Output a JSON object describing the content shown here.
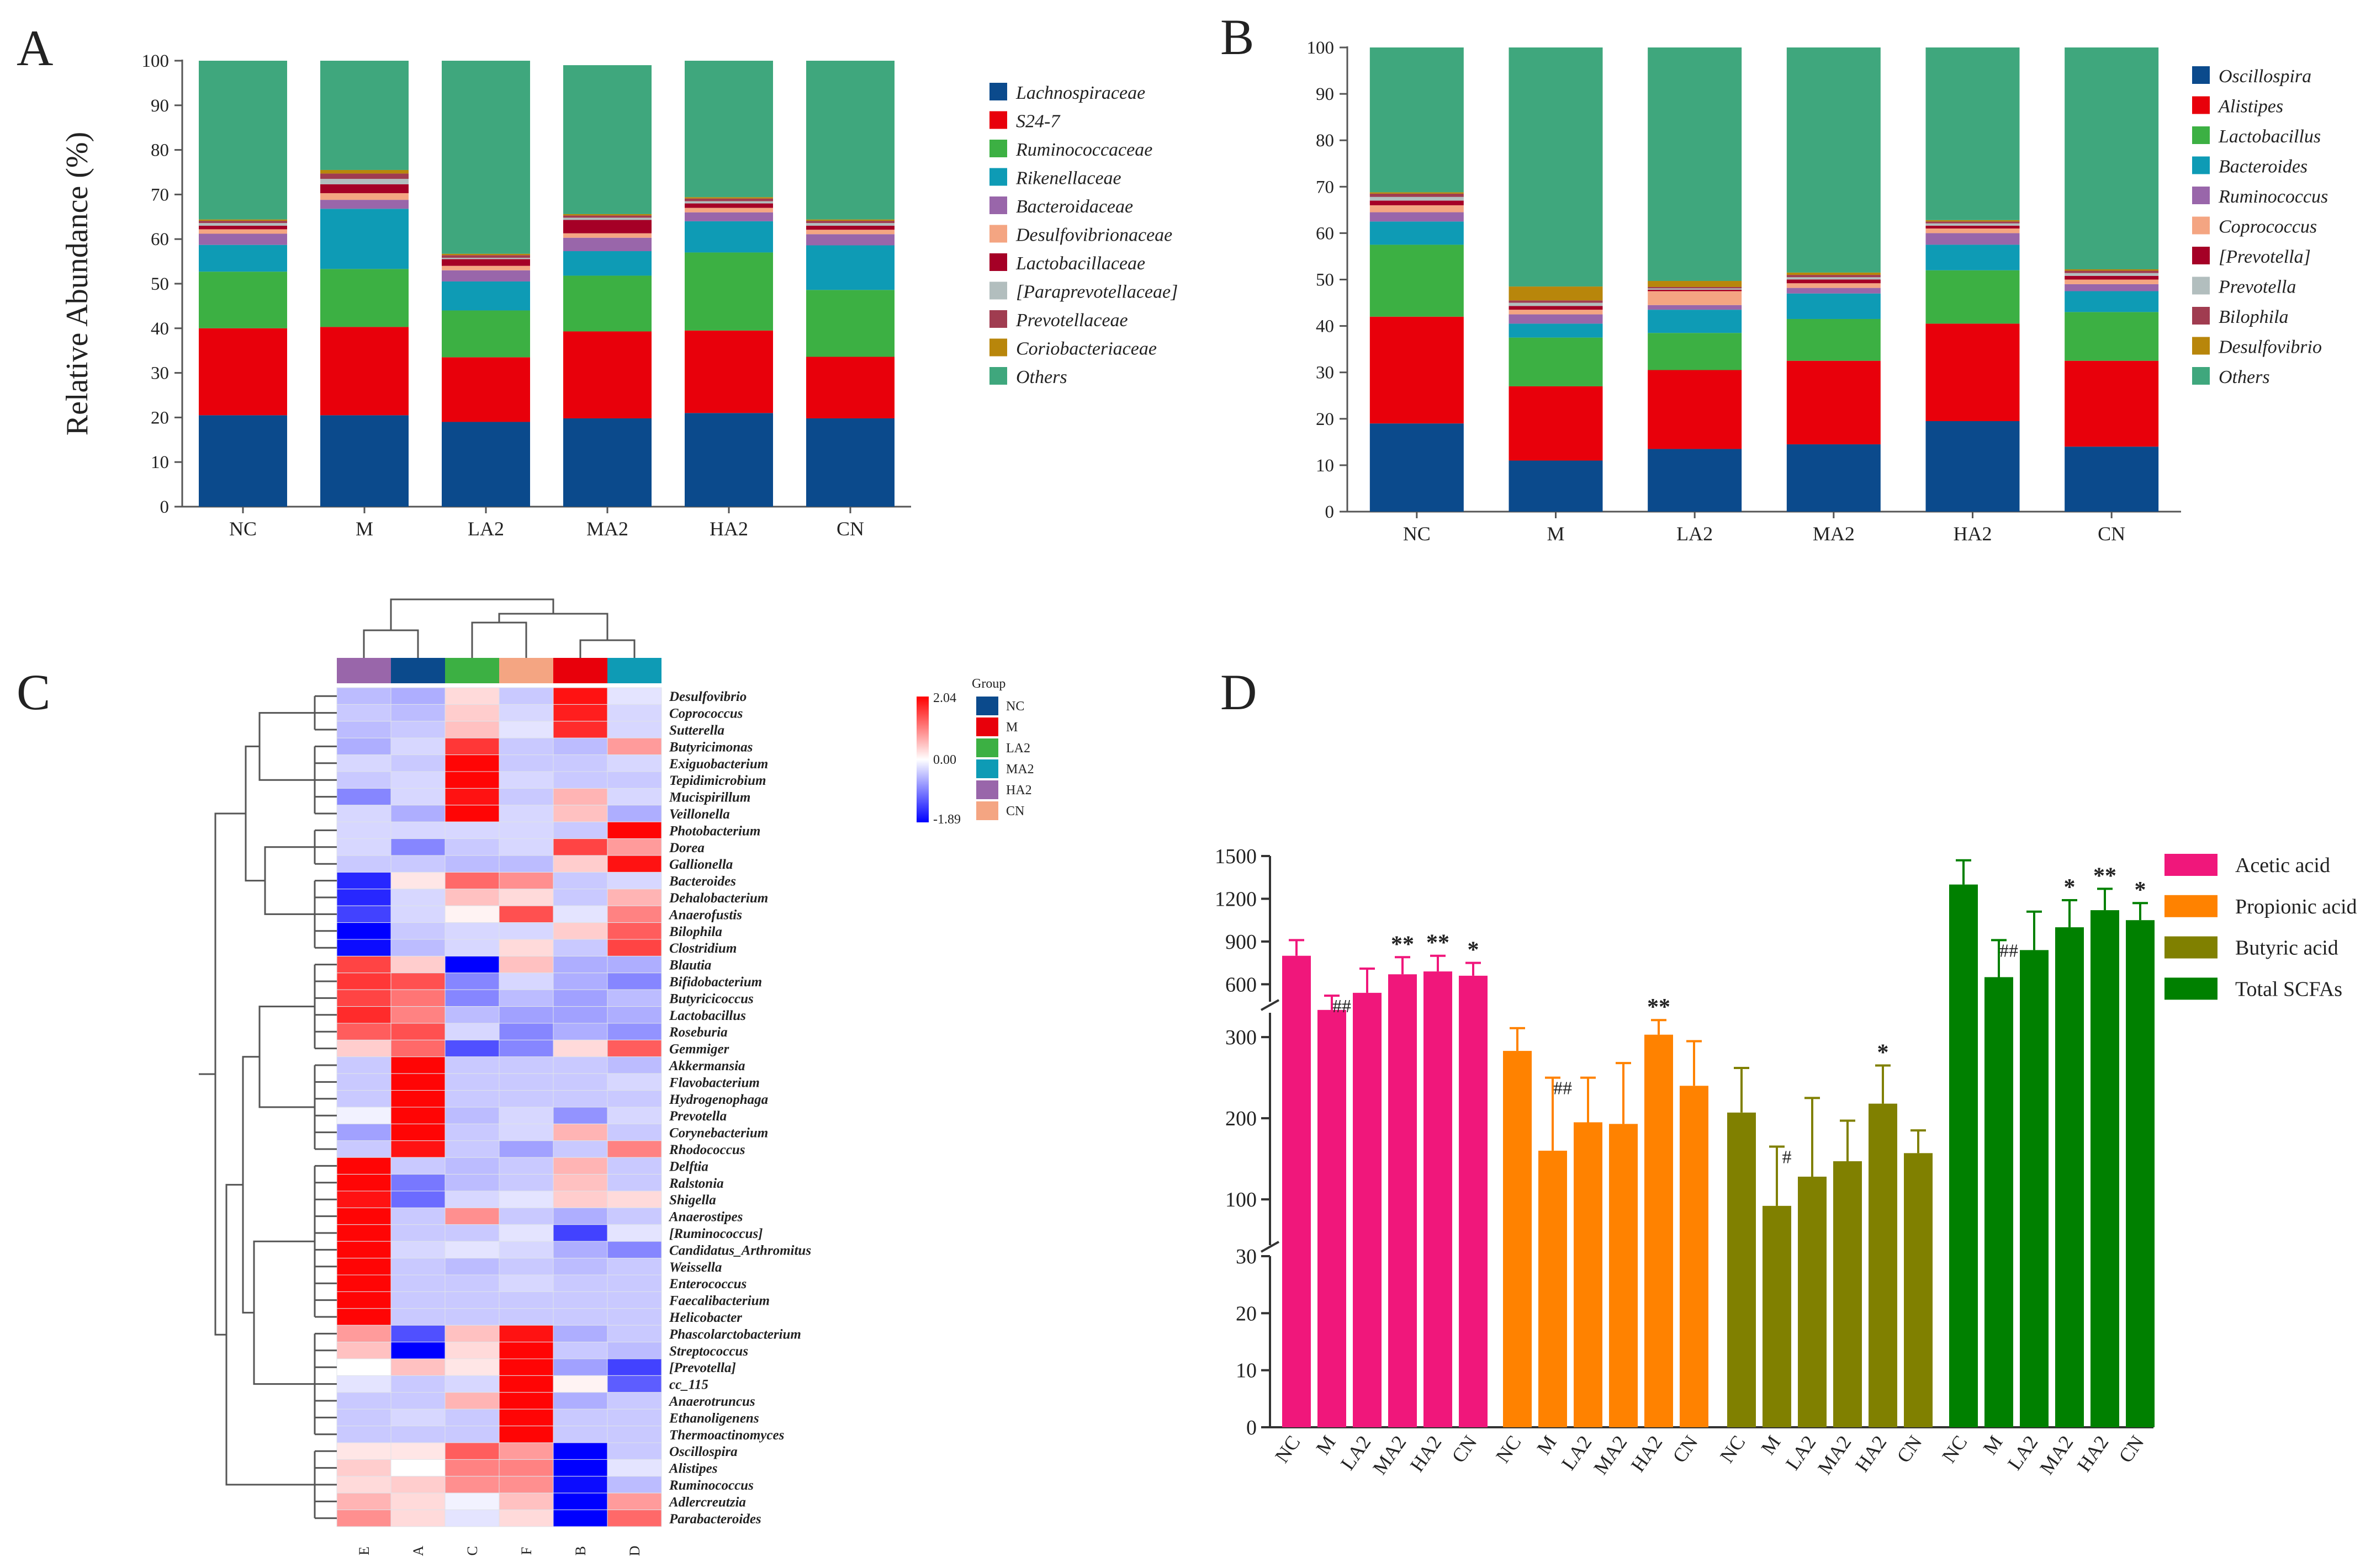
{
  "panel_labels": [
    "A",
    "B",
    "C",
    "D"
  ],
  "chart_data": [
    {
      "id": "A",
      "type": "bar",
      "stacked": true,
      "title": "",
      "xlabel": "",
      "ylabel": "Relative Abundance (%)",
      "ylim": [
        0,
        100
      ],
      "yticks": [
        0,
        10,
        20,
        30,
        40,
        50,
        60,
        70,
        80,
        90,
        100
      ],
      "categories": [
        "NC",
        "M",
        "LA2",
        "MA2",
        "HA2",
        "CN"
      ],
      "series": [
        {
          "name": "Lachnospiraceae",
          "color": "#0b4a8c",
          "values": [
            20.5,
            20.5,
            19,
            19.8,
            21,
            19.8
          ]
        },
        {
          "name": "S24-7",
          "color": "#e8000b",
          "values": [
            19.5,
            19.8,
            14.5,
            19.5,
            18.5,
            13.8
          ]
        },
        {
          "name": "Ruminococcaceae",
          "color": "#3cb043",
          "values": [
            12.7,
            13,
            10.5,
            12.5,
            17.5,
            15
          ]
        },
        {
          "name": "Rikenellaceae",
          "color": "#0e9bb5",
          "values": [
            6,
            13.5,
            6.5,
            5.5,
            7,
            10
          ]
        },
        {
          "name": "Bacteroidaceae",
          "color": "#9966aa",
          "values": [
            2.5,
            2,
            2.5,
            3,
            2,
            2.5
          ]
        },
        {
          "name": "Desulfovibrionaceae",
          "color": "#f4a582",
          "values": [
            1,
            1.5,
            1,
            1,
            1,
            1
          ]
        },
        {
          "name": "Lactobacillaceae",
          "color": "#a50026",
          "values": [
            0.8,
            2,
            1.5,
            3,
            1,
            0.9
          ]
        },
        {
          "name": "[Paraprevotellaceae]",
          "color": "#b2bebe",
          "values": [
            0.6,
            1.2,
            0.3,
            0.5,
            0.5,
            0.6
          ]
        },
        {
          "name": "Prevotellaceae",
          "color": "#a03c50",
          "values": [
            0.5,
            1.2,
            0.6,
            0.5,
            0.6,
            0.5
          ]
        },
        {
          "name": "Coriobacteriaceae",
          "color": "#b8860b",
          "values": [
            0.3,
            0.8,
            0.3,
            0.3,
            0.3,
            0.3
          ]
        },
        {
          "name": "Others",
          "color": "#3fa77d",
          "values": [
            35.6,
            24.5,
            43.3,
            33.4,
            30.6,
            35.6
          ]
        }
      ]
    },
    {
      "id": "B",
      "type": "bar",
      "stacked": true,
      "title": "",
      "xlabel": "",
      "ylabel": "",
      "ylim": [
        0,
        100
      ],
      "yticks": [
        0,
        10,
        20,
        30,
        40,
        50,
        60,
        70,
        80,
        90,
        100
      ],
      "categories": [
        "NC",
        "M",
        "LA2",
        "MA2",
        "HA2",
        "CN"
      ],
      "series": [
        {
          "name": "Oscillospira",
          "color": "#0b4a8c",
          "values": [
            19,
            11,
            13.5,
            14.5,
            19.5,
            14
          ]
        },
        {
          "name": "Alistipes",
          "color": "#e8000b",
          "values": [
            23,
            16,
            17,
            18,
            21,
            18.5
          ]
        },
        {
          "name": "Lactobacillus",
          "color": "#3cb043",
          "values": [
            15.5,
            10.5,
            8,
            9,
            11.5,
            10.5
          ]
        },
        {
          "name": "Bacteroides",
          "color": "#0e9bb5",
          "values": [
            5,
            3,
            5,
            5.5,
            5.5,
            4.5
          ]
        },
        {
          "name": "Ruminococcus",
          "color": "#9966aa",
          "values": [
            2,
            2,
            1,
            1.2,
            2.5,
            1.5
          ]
        },
        {
          "name": "Coprococcus",
          "color": "#f4a582",
          "values": [
            1.5,
            1,
            3,
            1,
            1,
            1
          ]
        },
        {
          "name": "[Prevotella]",
          "color": "#a50026",
          "values": [
            1,
            0.8,
            0.3,
            0.8,
            0.6,
            0.8
          ]
        },
        {
          "name": "Prevotella",
          "color": "#b2bebe",
          "values": [
            0.8,
            0.7,
            0.3,
            0.5,
            0.5,
            0.6
          ]
        },
        {
          "name": "Bilophila",
          "color": "#a03c50",
          "values": [
            0.7,
            0.5,
            0.3,
            0.5,
            0.4,
            0.5
          ]
        },
        {
          "name": "Desulfovibrio",
          "color": "#b8860b",
          "values": [
            0.3,
            3,
            1.3,
            0.5,
            0.3,
            0.3
          ]
        },
        {
          "name": "Others",
          "color": "#3fa77d",
          "values": [
            31.2,
            51.5,
            50.3,
            48.5,
            37.2,
            47.8
          ]
        }
      ]
    },
    {
      "id": "C",
      "type": "heatmap",
      "columns": [
        "E",
        "A",
        "C",
        "F",
        "B",
        "D"
      ],
      "column_groups": [
        "HA2",
        "NC",
        "LA2",
        "CN",
        "M",
        "MA2"
      ],
      "group_legend_title": "Group",
      "groups": [
        {
          "name": "NC",
          "color": "#0b4a8c"
        },
        {
          "name": "M",
          "color": "#e8000b"
        },
        {
          "name": "LA2",
          "color": "#3cb043"
        },
        {
          "name": "MA2",
          "color": "#0e9bb5"
        },
        {
          "name": "HA2",
          "color": "#9966aa"
        },
        {
          "name": "CN",
          "color": "#f4a582"
        }
      ],
      "scale": {
        "max": 2.04,
        "mid": 0.0,
        "min": -1.89,
        "labels": [
          "2.04",
          "0.00",
          "-1.89"
        ]
      },
      "rows": [
        "Desulfovibrio",
        "Coprococcus",
        "Sutterella",
        "Butyricimonas",
        "Exiguobacterium",
        "Tepidimicrobium",
        "Mucispirillum",
        "Veillonella",
        "Photobacterium",
        "Dorea",
        "Gallionella",
        "Bacteroides",
        "Dehalobacterium",
        "Anaerofustis",
        "Bilophila",
        "Clostridium",
        "Blautia",
        "Bifidobacterium",
        "Butyricicoccus",
        "Lactobacillus",
        "Roseburia",
        "Gemmiger",
        "Akkermansia",
        "Flavobacterium",
        "Hydrogenophaga",
        "Prevotella",
        "Corynebacterium",
        "Rhodococcus",
        "Delftia",
        "Ralstonia",
        "Shigella",
        "Anaerostipes",
        "[Ruminococcus]",
        "Candidatus_Arthromitus",
        "Weissella",
        "Enterococcus",
        "Faecalibacterium",
        "Helicobacter",
        "Phascolarctobacterium",
        "Streptococcus",
        "[Prevotella]",
        "cc_115",
        "Anaerotruncus",
        "Ethanoligenens",
        "Thermoactinomyces",
        "Oscillospira",
        "Alistipes",
        "Ruminococcus",
        "Adlercreutzia",
        "Parabacteroides"
      ],
      "values": [
        [
          -0.5,
          -0.6,
          0.3,
          -0.4,
          1.9,
          -0.2
        ],
        [
          -0.4,
          -0.5,
          0.4,
          -0.3,
          1.8,
          -0.3
        ],
        [
          -0.5,
          -0.4,
          0.5,
          -0.2,
          1.7,
          -0.3
        ],
        [
          -0.6,
          -0.3,
          1.6,
          -0.4,
          -0.5,
          0.8
        ],
        [
          -0.3,
          -0.4,
          2.0,
          -0.4,
          -0.4,
          -0.3
        ],
        [
          -0.4,
          -0.3,
          2.0,
          -0.3,
          -0.4,
          -0.4
        ],
        [
          -0.9,
          -0.3,
          1.9,
          -0.4,
          0.6,
          -0.3
        ],
        [
          -0.3,
          -0.6,
          2.0,
          -0.3,
          0.5,
          -0.6
        ],
        [
          -0.3,
          -0.3,
          -0.3,
          -0.3,
          -0.4,
          2.0
        ],
        [
          -0.3,
          -0.9,
          -0.4,
          -0.3,
          1.5,
          0.8
        ],
        [
          -0.4,
          -0.4,
          -0.5,
          -0.5,
          0.4,
          1.9
        ],
        [
          -1.6,
          0.2,
          1.2,
          0.9,
          -0.4,
          -0.3
        ],
        [
          -1.6,
          -0.3,
          0.5,
          0.3,
          -0.4,
          0.6
        ],
        [
          -1.4,
          -0.3,
          0.1,
          1.4,
          -0.2,
          1.0
        ],
        [
          -1.9,
          -0.4,
          -0.3,
          -0.3,
          0.4,
          1.3
        ],
        [
          -1.8,
          -0.5,
          -0.3,
          0.3,
          -0.4,
          1.5
        ],
        [
          1.5,
          0.4,
          -1.9,
          0.5,
          -0.6,
          -0.6
        ],
        [
          1.6,
          1.4,
          -0.9,
          -0.3,
          -0.6,
          -0.9
        ],
        [
          1.5,
          1.1,
          -0.9,
          -0.5,
          -0.7,
          -0.5
        ],
        [
          1.7,
          1.0,
          -0.5,
          -0.7,
          -0.7,
          -0.6
        ],
        [
          1.3,
          1.4,
          -0.3,
          -0.9,
          -0.6,
          -0.8
        ],
        [
          0.4,
          1.2,
          -1.3,
          -0.9,
          0.3,
          1.3
        ],
        [
          -0.4,
          2.0,
          -0.4,
          -0.4,
          -0.4,
          -0.5
        ],
        [
          -0.4,
          2.0,
          -0.4,
          -0.4,
          -0.4,
          -0.3
        ],
        [
          -0.4,
          2.0,
          -0.4,
          -0.4,
          -0.4,
          -0.4
        ],
        [
          -0.1,
          2.0,
          -0.5,
          -0.3,
          -0.8,
          -0.3
        ],
        [
          -0.7,
          2.0,
          -0.4,
          -0.3,
          0.6,
          -0.4
        ],
        [
          -0.4,
          1.9,
          -0.4,
          -0.7,
          -0.4,
          1.0
        ],
        [
          2.0,
          -0.4,
          -0.5,
          -0.4,
          0.6,
          -0.4
        ],
        [
          2.0,
          -1.0,
          -0.5,
          -0.4,
          0.5,
          -0.4
        ],
        [
          1.9,
          -1.1,
          -0.3,
          -0.2,
          0.4,
          0.3
        ],
        [
          2.0,
          -0.4,
          0.9,
          -0.4,
          -0.6,
          -0.4
        ],
        [
          2.0,
          -0.4,
          -0.4,
          -0.2,
          -1.4,
          -0.2
        ],
        [
          2.0,
          -0.3,
          -0.2,
          -0.3,
          -0.6,
          -0.9
        ],
        [
          2.0,
          -0.4,
          -0.5,
          -0.4,
          -0.5,
          -0.4
        ],
        [
          2.0,
          -0.4,
          -0.4,
          -0.3,
          -0.4,
          -0.4
        ],
        [
          2.0,
          -0.4,
          -0.4,
          -0.4,
          -0.4,
          -0.4
        ],
        [
          2.0,
          -0.4,
          -0.4,
          -0.4,
          -0.4,
          -0.4
        ],
        [
          0.8,
          -1.3,
          0.5,
          1.9,
          -0.6,
          -0.4
        ],
        [
          0.5,
          -1.9,
          0.3,
          2.0,
          -0.4,
          -0.5
        ],
        [
          0.0,
          0.5,
          0.2,
          2.0,
          -0.7,
          -1.4
        ],
        [
          -0.2,
          -0.4,
          -0.3,
          2.0,
          0.1,
          -1.2
        ],
        [
          -0.4,
          -0.4,
          0.6,
          2.0,
          -0.6,
          -0.4
        ],
        [
          -0.4,
          -0.3,
          -0.4,
          2.0,
          -0.4,
          -0.4
        ],
        [
          -0.4,
          -0.4,
          -0.4,
          2.0,
          -0.4,
          -0.4
        ],
        [
          0.2,
          0.2,
          1.3,
          0.8,
          -1.9,
          -0.4
        ],
        [
          0.4,
          0.0,
          1.0,
          1.0,
          -1.9,
          -0.2
        ],
        [
          0.3,
          0.4,
          0.9,
          0.9,
          -1.8,
          -0.5
        ],
        [
          0.6,
          0.3,
          -0.1,
          0.5,
          -1.9,
          0.8
        ],
        [
          0.9,
          0.3,
          -0.2,
          0.3,
          -1.9,
          1.2
        ]
      ]
    },
    {
      "id": "D",
      "type": "bar",
      "title": "",
      "xlabel": "",
      "ylabel": "",
      "broken_axis": {
        "segments": [
          [
            0,
            30
          ],
          [
            30,
            330
          ],
          [
            400,
            1500
          ]
        ],
        "tick_groups": [
          [
            "0",
            "10",
            "20",
            "30"
          ],
          [
            "100",
            "200",
            "300"
          ],
          [
            "600",
            "900",
            "1200",
            "1500"
          ]
        ]
      },
      "categories": [
        "NC",
        "M",
        "LA2",
        "MA2",
        "HA2",
        "CN"
      ],
      "series": [
        {
          "name": "Acetic acid",
          "color": "#f0177b",
          "values": [
            800,
            420,
            540,
            670,
            690,
            660
          ],
          "errors": [
            110,
            100,
            170,
            120,
            110,
            90
          ],
          "marks": [
            "",
            "##",
            "",
            "**",
            "**",
            "*"
          ]
        },
        {
          "name": "Propionic acid",
          "color": "#ff8200",
          "values": [
            283,
            160,
            195,
            193,
            303,
            240
          ],
          "errors": [
            28,
            90,
            55,
            75,
            18,
            55
          ],
          "marks": [
            "",
            "##",
            "",
            "",
            "**",
            ""
          ]
        },
        {
          "name": "Butyric acid",
          "color": "#808000",
          "values": [
            207,
            92,
            128,
            147,
            218,
            157
          ],
          "errors": [
            55,
            73,
            97,
            50,
            47,
            28
          ],
          "marks": [
            "",
            "#",
            "",
            "",
            "*",
            ""
          ]
        },
        {
          "name": "Total SCFAs",
          "color": "#008000",
          "values": [
            1300,
            650,
            840,
            1000,
            1120,
            1050
          ],
          "errors": [
            170,
            260,
            270,
            190,
            150,
            120
          ],
          "marks": [
            "",
            "##",
            "",
            "*",
            "**",
            "*"
          ]
        }
      ]
    }
  ]
}
